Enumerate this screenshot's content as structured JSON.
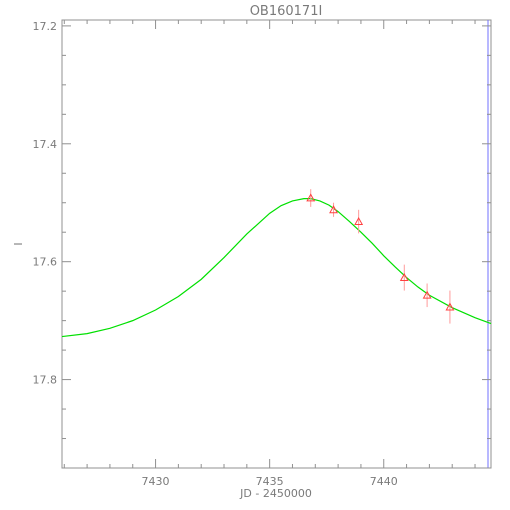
{
  "chart_data": {
    "type": "scatter",
    "title": "OB160171I",
    "xlabel": "JD - 2450000",
    "ylabel": "I",
    "xlim": [
      7425.9,
      7444.7
    ],
    "ylim": [
      17.95,
      17.19
    ],
    "y_inverted": true,
    "grid": false,
    "x_ticks": [
      7430,
      7435,
      7440
    ],
    "x_tick_labels": [
      "7430",
      "7435",
      "7440"
    ],
    "y_ticks": [
      17.2,
      17.4,
      17.6,
      17.8
    ],
    "y_tick_labels": [
      "17.2",
      "17.4",
      "17.6",
      "17.8"
    ],
    "series": [
      {
        "kind": "points",
        "marker": "triangle",
        "color": "#ff4040",
        "x": [
          7436.8,
          7437.8,
          7438.9,
          7440.9,
          7441.9,
          7442.9
        ],
        "y": [
          17.492,
          17.512,
          17.532,
          17.627,
          17.657,
          17.677
        ],
        "yerr": [
          0.015,
          0.012,
          0.02,
          0.022,
          0.02,
          0.028
        ]
      },
      {
        "kind": "model_curve",
        "color": "#00e000",
        "x": [
          7425.9,
          7427,
          7428,
          7429,
          7430,
          7431,
          7432,
          7433,
          7434,
          7435,
          7435.5,
          7436,
          7436.5,
          7436.8,
          7437.2,
          7437.6,
          7438,
          7438.5,
          7439,
          7439.5,
          7440,
          7440.5,
          7441,
          7441.5,
          7442,
          7443,
          7444,
          7444.7
        ],
        "y": [
          17.727,
          17.722,
          17.713,
          17.7,
          17.682,
          17.659,
          17.63,
          17.593,
          17.553,
          17.518,
          17.505,
          17.497,
          17.493,
          17.493,
          17.497,
          17.504,
          17.515,
          17.532,
          17.55,
          17.569,
          17.59,
          17.609,
          17.627,
          17.643,
          17.657,
          17.678,
          17.695,
          17.705
        ]
      }
    ],
    "right_line_color": "#7070ff",
    "axis_color": "#909090"
  }
}
